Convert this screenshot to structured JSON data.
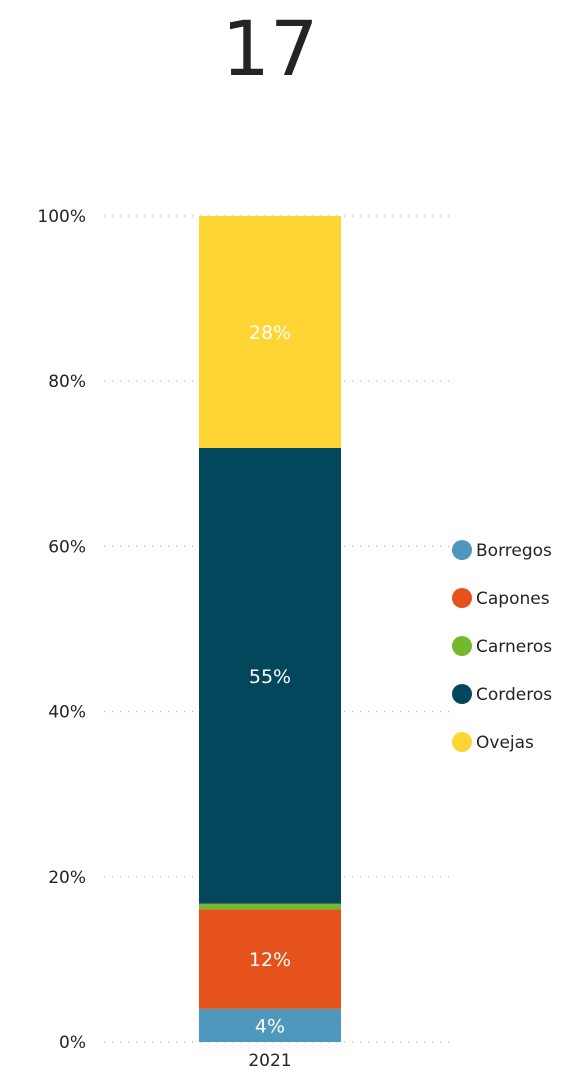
{
  "kpi": {
    "value": "17"
  },
  "chart_data": {
    "type": "bar",
    "stacked": true,
    "normalized": true,
    "categories": [
      "2021"
    ],
    "series": [
      {
        "name": "Borregos",
        "values": [
          4
        ],
        "label": "4%",
        "color": "#4e97bd"
      },
      {
        "name": "Capones",
        "values": [
          12
        ],
        "label": "12%",
        "color": "#e5521b"
      },
      {
        "name": "Carneros",
        "values": [
          0.7
        ],
        "label": "",
        "color": "#75b82e"
      },
      {
        "name": "Corderos",
        "values": [
          55
        ],
        "label": "55%",
        "color": "#02475b"
      },
      {
        "name": "Ovejas",
        "values": [
          28
        ],
        "label": "28%",
        "color": "#fed532"
      }
    ],
    "y_ticks": [
      "0%",
      "20%",
      "40%",
      "60%",
      "80%",
      "100%"
    ],
    "ylim": [
      0,
      100
    ],
    "grid": true,
    "legend": "right",
    "title": "",
    "xlabel": "",
    "ylabel": ""
  }
}
